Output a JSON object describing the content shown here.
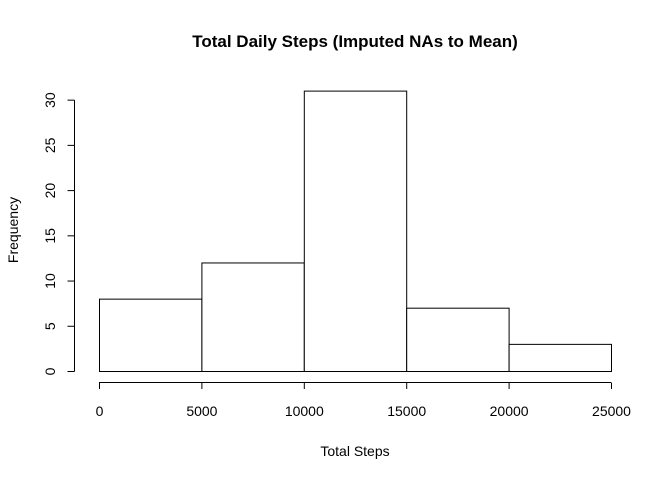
{
  "chart_data": {
    "type": "bar",
    "title": "Total Daily Steps (Imputed NAs to Mean)",
    "xlabel": "Total Steps",
    "ylabel": "Frequency",
    "bins": [
      {
        "start": 0,
        "end": 5000,
        "value": 8
      },
      {
        "start": 5000,
        "end": 10000,
        "value": 12
      },
      {
        "start": 10000,
        "end": 15000,
        "value": 31
      },
      {
        "start": 15000,
        "end": 20000,
        "value": 7
      },
      {
        "start": 20000,
        "end": 25000,
        "value": 3
      }
    ],
    "x_ticks": [
      0,
      5000,
      10000,
      15000,
      20000,
      25000
    ],
    "y_ticks": [
      0,
      5,
      10,
      15,
      20,
      25,
      30
    ],
    "xlim": [
      0,
      25000
    ],
    "ylim": [
      0,
      31
    ],
    "grid": false,
    "legend": "none",
    "colors": {
      "fill": "#ffffff",
      "stroke": "#000000"
    }
  }
}
